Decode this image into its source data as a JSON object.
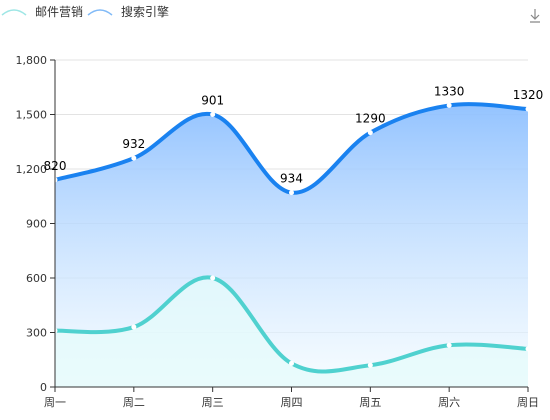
{
  "toolbar": {
    "download_icon": "download-icon"
  },
  "chart_data": {
    "type": "area",
    "categories": [
      "周一",
      "周二",
      "周三",
      "周四",
      "周五",
      "周六",
      "周日"
    ],
    "ylim": [
      0,
      1800
    ],
    "yticks": [
      0,
      300,
      600,
      900,
      1200,
      1500,
      1800
    ],
    "ytick_labels": [
      "0",
      "300",
      "600",
      "900",
      "1,200",
      "1,500",
      "1,800"
    ],
    "grid": true,
    "legend_position": "top-left",
    "series": [
      {
        "name": "邮件营销",
        "values": [
          310,
          330,
          600,
          130,
          120,
          230,
          210
        ],
        "color": "#4fd1cf",
        "area_color": "#e4fbfb"
      },
      {
        "name": "搜索引擎",
        "values": [
          1140,
          1260,
          1500,
          1070,
          1400,
          1550,
          1530
        ],
        "color": "#1a82f0",
        "area_color": "#9fcaff",
        "labels": [
          "820",
          "932",
          "901",
          "934",
          "1290",
          "1330",
          "1320"
        ]
      }
    ]
  }
}
